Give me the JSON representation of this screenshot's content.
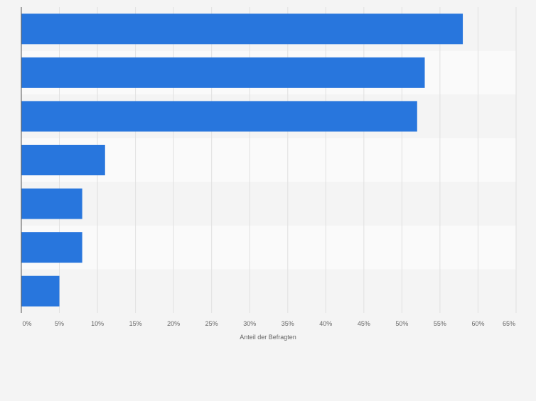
{
  "chart_data": {
    "type": "bar",
    "orientation": "horizontal",
    "categories": [
      "",
      "",
      "",
      "",
      "",
      "",
      ""
    ],
    "values": [
      58,
      53,
      52,
      11,
      8,
      8,
      5
    ],
    "xlabel": "Anteil der Befragten",
    "ylabel": "",
    "xlim": [
      0,
      65
    ],
    "tick_values": [
      0,
      5,
      10,
      15,
      20,
      25,
      30,
      35,
      40,
      45,
      50,
      55,
      60,
      65
    ],
    "tick_labels": [
      "0%",
      "5%",
      "10%",
      "15%",
      "20%",
      "25%",
      "30%",
      "35%",
      "40%",
      "45%",
      "50%",
      "55%",
      "60%",
      "65%"
    ],
    "grid": true,
    "legend": "none",
    "colors": {
      "bar": "#2876dd",
      "grid": "#e0e0e0",
      "band_light": "#fafafa",
      "band_dark": "#f4f4f4",
      "axis": "#555555",
      "tick_text": "#666666",
      "background": "#f4f4f4"
    }
  }
}
